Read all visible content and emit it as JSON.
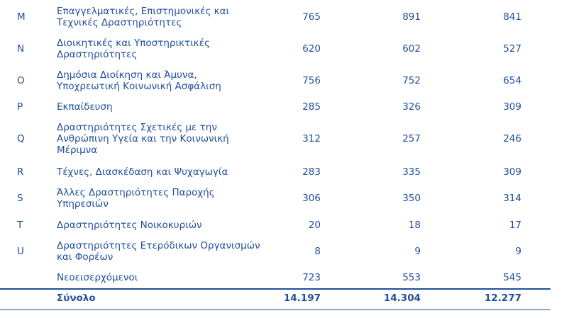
{
  "rows": [
    {
      "code": "M",
      "desc": "Επαγγελματικές, Επιστημονικές και Τεχνικές Δραστηριότητες",
      "v1": "765",
      "v2": "891",
      "v3": "841"
    },
    {
      "code": "N",
      "desc": "Διοικητικές και Υποστηρικτικές Δραστηριότητες",
      "v1": "620",
      "v2": "602",
      "v3": "527"
    },
    {
      "code": "O",
      "desc": "Δημόσια Διοίκηση και Άμυνα, Υποχρεωτική Κοινωνική Ασφάλιση",
      "v1": "756",
      "v2": "752",
      "v3": "654"
    },
    {
      "code": "P",
      "desc": "Εκπαίδευση",
      "v1": "285",
      "v2": "326",
      "v3": "309"
    },
    {
      "code": "Q",
      "desc": "Δραστηριότητες Σχετικές με την Ανθρώπινη Υγεία και την Κοινωνική Μέριμνα",
      "v1": "312",
      "v2": "257",
      "v3": "246"
    },
    {
      "code": "R",
      "desc": "Τέχνες, Διασκέδαση και Ψυχαγωγία",
      "v1": "283",
      "v2": "335",
      "v3": "309"
    },
    {
      "code": "S",
      "desc": "Άλλες Δραστηριότητες Παροχής Υπηρεσιών",
      "v1": "306",
      "v2": "350",
      "v3": "314"
    },
    {
      "code": "T",
      "desc": "Δραστηριότητες Νοικοκυριών",
      "v1": "20",
      "v2": "18",
      "v3": "17"
    },
    {
      "code": "U",
      "desc": "Δραστηριότητες Ετερόδικων Οργανισμών και Φορέων",
      "v1": "8",
      "v2": "9",
      "v3": "9"
    },
    {
      "code": "",
      "desc": "Νεοεισερχόμενοι",
      "v1": "723",
      "v2": "553",
      "v3": "545"
    }
  ],
  "total": {
    "label": "Σύνολο",
    "v1": "14.197",
    "v2": "14.304",
    "v3": "12.277"
  }
}
